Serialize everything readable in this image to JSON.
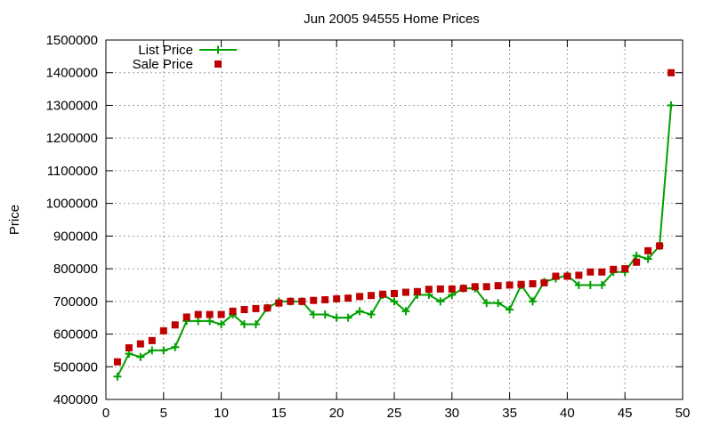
{
  "chart_data": {
    "type": "line",
    "title": "Jun 2005 94555 Home Prices",
    "xlabel": "",
    "ylabel": "Price",
    "xlim": [
      0,
      50
    ],
    "ylim": [
      400000,
      1500000
    ],
    "x_ticks": [
      0,
      5,
      10,
      15,
      20,
      25,
      30,
      35,
      40,
      45,
      50
    ],
    "y_ticks": [
      400000,
      500000,
      600000,
      700000,
      800000,
      900000,
      1000000,
      1100000,
      1200000,
      1300000,
      1400000,
      1500000
    ],
    "grid": true,
    "legend_position": "top-left",
    "series": [
      {
        "name": "List Price",
        "style": "line-points",
        "color": "#00a000",
        "x": [
          1,
          2,
          3,
          4,
          5,
          6,
          7,
          8,
          9,
          10,
          11,
          12,
          13,
          14,
          15,
          16,
          17,
          18,
          19,
          20,
          21,
          22,
          23,
          24,
          25,
          26,
          27,
          28,
          29,
          30,
          31,
          32,
          33,
          34,
          35,
          36,
          37,
          38,
          39,
          40,
          41,
          42,
          43,
          44,
          45,
          46,
          47,
          48,
          49
        ],
        "values": [
          470000,
          540000,
          530000,
          550000,
          550000,
          560000,
          640000,
          640000,
          640000,
          630000,
          660000,
          630000,
          630000,
          680000,
          700000,
          700000,
          700000,
          660000,
          660000,
          650000,
          650000,
          670000,
          660000,
          720000,
          700000,
          670000,
          720000,
          720000,
          700000,
          720000,
          740000,
          740000,
          695000,
          695000,
          675000,
          750000,
          700000,
          760000,
          770000,
          780000,
          750000,
          750000,
          750000,
          790000,
          790000,
          840000,
          830000,
          870000,
          1300000
        ]
      },
      {
        "name": "Sale Price",
        "style": "points",
        "color": "#c00000",
        "x": [
          1,
          2,
          3,
          4,
          5,
          6,
          7,
          8,
          9,
          10,
          11,
          12,
          13,
          14,
          15,
          16,
          17,
          18,
          19,
          20,
          21,
          22,
          23,
          24,
          25,
          26,
          27,
          28,
          29,
          30,
          31,
          32,
          33,
          34,
          35,
          36,
          37,
          38,
          39,
          40,
          41,
          42,
          43,
          44,
          45,
          46,
          47,
          48,
          49
        ],
        "values": [
          515000,
          558000,
          570000,
          580000,
          610000,
          628000,
          652000,
          660000,
          660000,
          660000,
          670000,
          675000,
          678000,
          680000,
          695000,
          700000,
          700000,
          703000,
          705000,
          708000,
          710000,
          715000,
          718000,
          722000,
          724000,
          728000,
          730000,
          737000,
          738000,
          738000,
          740000,
          745000,
          745000,
          748000,
          750000,
          752000,
          754000,
          757000,
          777000,
          777000,
          780000,
          790000,
          790000,
          798000,
          800000,
          820000,
          855000,
          870000,
          1400000
        ]
      }
    ]
  }
}
